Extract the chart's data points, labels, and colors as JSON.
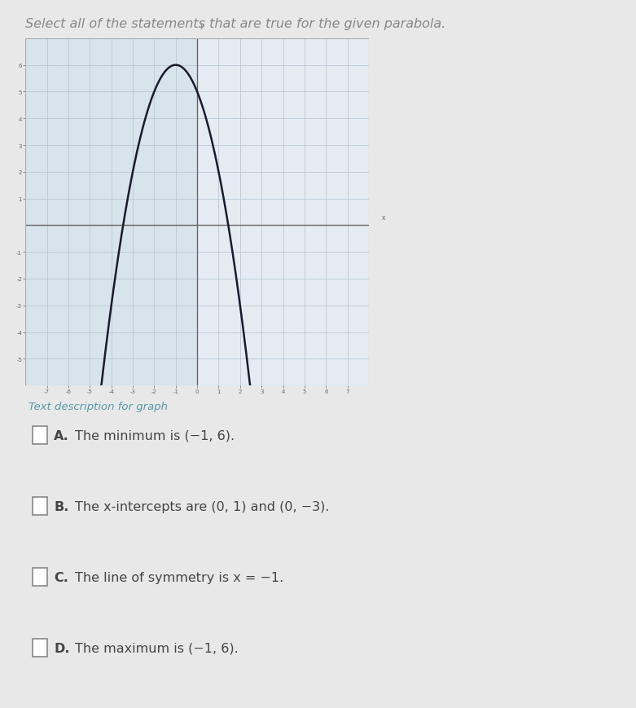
{
  "title": "Select all of the statements that are true for the given parabola.",
  "title_color": "#888888",
  "title_fontsize": 11.5,
  "graph_bg_left": "#d8e4ec",
  "graph_bg_right": "#e4ecf2",
  "axis_color": "#666666",
  "grid_color": "#b8c8d4",
  "curve_color": "#1a1a2e",
  "curve_linewidth": 1.8,
  "xlim": [
    -8,
    8
  ],
  "ylim": [
    -6,
    7
  ],
  "xticks": [
    -7,
    -6,
    -5,
    -4,
    -3,
    -2,
    -1,
    0,
    1,
    2,
    3,
    4,
    5,
    6,
    7
  ],
  "yticks": [
    -5,
    -4,
    -3,
    -2,
    -1,
    1,
    2,
    3,
    4,
    5,
    6
  ],
  "vertex_x": -1,
  "vertex_y": 6,
  "x_intercept_1": 1,
  "x_intercept_2": -3,
  "text_description": "Text description for graph",
  "text_desc_color": "#5599aa",
  "text_desc_fontsize": 9.5,
  "options": [
    {
      "label": "A.",
      "text": "The minimum is (−1, 6)."
    },
    {
      "label": "B.",
      "text": "The x-intercepts are (0, 1) and (0, −3)."
    },
    {
      "label": "C.",
      "text": "The line of symmetry is x = −1."
    },
    {
      "label": "D.",
      "text": "The maximum is (−1, 6)."
    }
  ],
  "option_fontsize": 11.5,
  "option_color": "#444444",
  "option_label_color": "#444444",
  "page_bg": "#e8e8e8",
  "cb_edge_color": "#888888"
}
